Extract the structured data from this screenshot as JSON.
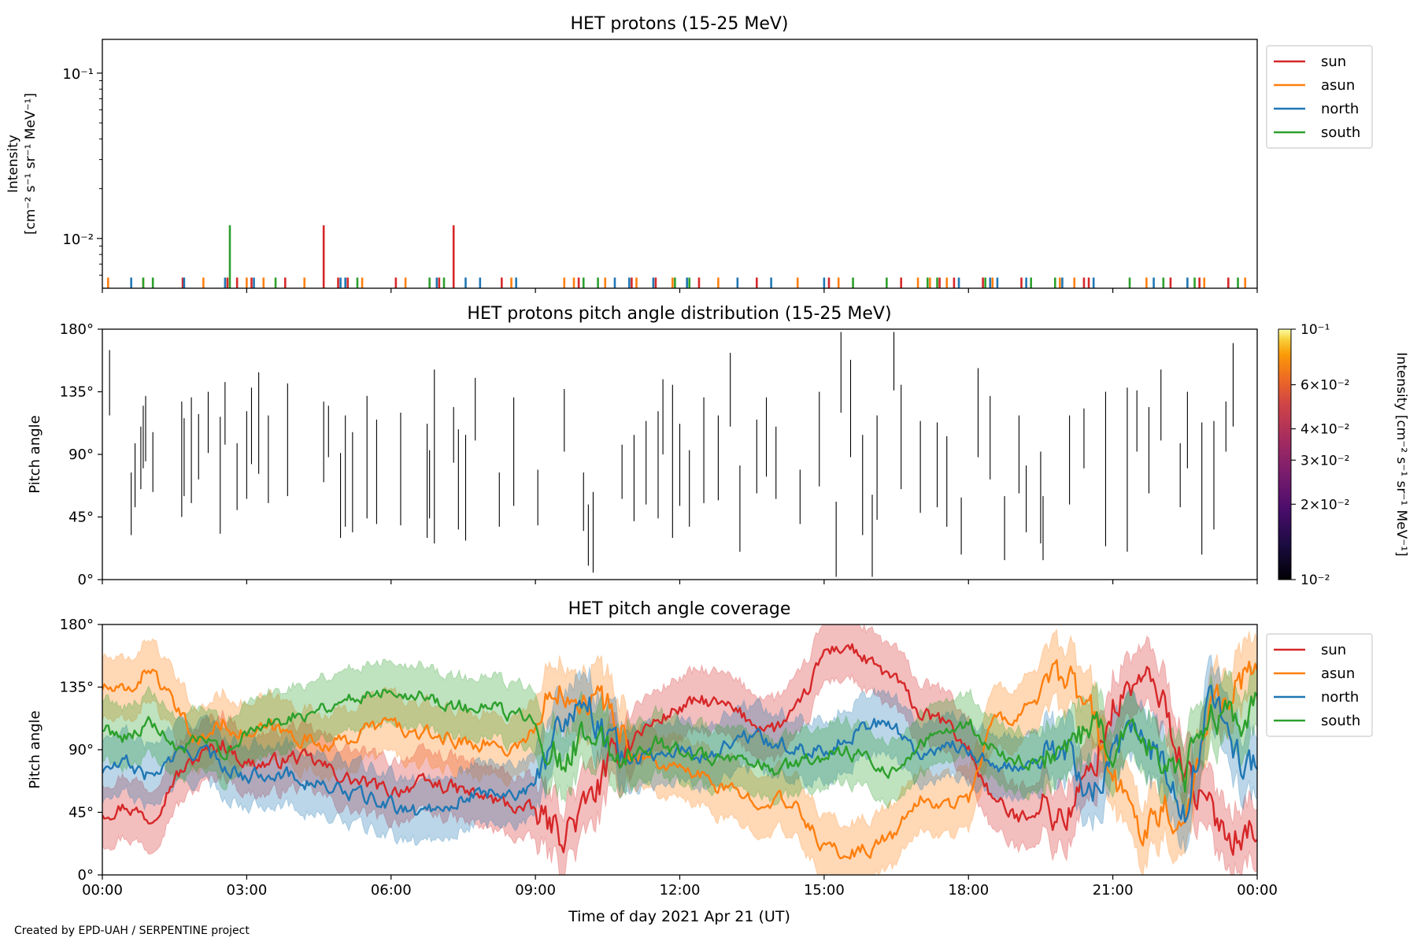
{
  "footer": "Created by EPD-UAH / SERPENTINE project",
  "chart_data": [
    {
      "type": "bar",
      "title": "HET protons (15-25 MeV)",
      "ylabel_line1": "Intensity",
      "ylabel_line2": "[cm⁻² s⁻¹ sr⁻¹ MeV⁻¹]",
      "yscale": "log",
      "ylim": [
        0.005,
        0.16
      ],
      "yticks": [
        {
          "value": 0.1,
          "label": "10⁻¹"
        },
        {
          "value": 0.01,
          "label": "10⁻²"
        }
      ],
      "xlim_hours": [
        0,
        24
      ],
      "legend_position": "outside-right",
      "series": [
        {
          "name": "sun",
          "color": "#d62728",
          "x": [
            1.67,
            2.6,
            2.8,
            3.1,
            3.8,
            4.6,
            4.9,
            5.1,
            6.1,
            7.0,
            7.3,
            8.3,
            9.9,
            11.0,
            11.5,
            12.4,
            13.6,
            15.1,
            16.6,
            17.4,
            17.7,
            18.3,
            19.1,
            20.4,
            20.5,
            22.2,
            22.8,
            23.4
          ],
          "y": [
            0.0058,
            0.0058,
            0.0058,
            0.0058,
            0.0058,
            0.012,
            0.0058,
            0.0058,
            0.0058,
            0.0058,
            0.012,
            0.0058,
            0.0058,
            0.0058,
            0.0058,
            0.0058,
            0.0058,
            0.0058,
            0.0058,
            0.0058,
            0.0058,
            0.0058,
            0.0058,
            0.0058,
            0.0058,
            0.0058,
            0.0058,
            0.0058
          ]
        },
        {
          "name": "asun",
          "color": "#ff7f0e",
          "x": [
            0.12,
            0.85,
            2.1,
            3.0,
            3.35,
            4.2,
            5.4,
            6.3,
            8.5,
            9.6,
            9.8,
            10.45,
            11.1,
            11.85,
            12.8,
            14.45,
            15.3,
            16.95,
            17.2,
            17.55,
            18.5,
            19.9,
            20.2,
            21.7,
            22.9,
            23.75
          ],
          "y": [
            0.0058,
            0.0058,
            0.0058,
            0.0058,
            0.0058,
            0.0058,
            0.0058,
            0.0058,
            0.0058,
            0.0058,
            0.0058,
            0.0058,
            0.0058,
            0.0058,
            0.0058,
            0.0058,
            0.0058,
            0.0058,
            0.0058,
            0.0058,
            0.0058,
            0.0058,
            0.0058,
            0.0058,
            0.0058,
            0.0058
          ]
        },
        {
          "name": "north",
          "color": "#1f77b4",
          "x": [
            0.6,
            1.7,
            2.55,
            3.15,
            4.95,
            5.05,
            6.95,
            7.55,
            7.85,
            8.6,
            10.65,
            10.95,
            11.45,
            12.15,
            13.2,
            13.9,
            15.0,
            17.8,
            18.45,
            18.6,
            19.2,
            19.95,
            20.6,
            21.85,
            22.55
          ],
          "y": [
            0.0058,
            0.0058,
            0.0058,
            0.0058,
            0.0058,
            0.0058,
            0.0058,
            0.0058,
            0.0058,
            0.0058,
            0.0058,
            0.0058,
            0.0058,
            0.0058,
            0.0058,
            0.0058,
            0.0058,
            0.0058,
            0.0058,
            0.0058,
            0.0058,
            0.0058,
            0.0058,
            0.0058,
            0.0058
          ]
        },
        {
          "name": "south",
          "color": "#2ca02c",
          "x": [
            0.85,
            1.05,
            2.65,
            3.6,
            5.3,
            6.8,
            7.1,
            10.0,
            10.3,
            11.9,
            12.2,
            15.6,
            16.3,
            17.15,
            17.35,
            18.35,
            19.3,
            19.8,
            21.35,
            22.05,
            22.7,
            23.6
          ],
          "y": [
            0.0058,
            0.0058,
            0.012,
            0.0058,
            0.0058,
            0.0058,
            0.0058,
            0.0058,
            0.0058,
            0.0058,
            0.0058,
            0.0058,
            0.0058,
            0.0058,
            0.0058,
            0.0058,
            0.0058,
            0.0058,
            0.0058,
            0.0058,
            0.0058,
            0.0058
          ]
        }
      ]
    },
    {
      "type": "heatmap",
      "title": "HET protons pitch angle distribution (15-25 MeV)",
      "ylabel": "Pitch angle",
      "ylim": [
        0,
        180
      ],
      "yticks": [
        "0°",
        "45°",
        "90°",
        "135°",
        "180°"
      ],
      "xlim_hours": [
        0,
        24
      ],
      "colorbar": {
        "label": "Intensity [cm⁻² s⁻¹ sr⁻¹ MeV⁻¹]",
        "scale": "log",
        "range": [
          0.01,
          0.1
        ],
        "colormap": "inferno",
        "ticks": [
          {
            "value": 0.1,
            "label": "10⁻¹"
          },
          {
            "value": 0.06,
            "label": "6×10⁻²"
          },
          {
            "value": 0.04,
            "label": "4×10⁻²"
          },
          {
            "value": 0.03,
            "label": "3×10⁻²"
          },
          {
            "value": 0.02,
            "label": "2×10⁻²"
          },
          {
            "value": 0.01,
            "label": "10⁻²"
          }
        ]
      },
      "segments": [
        [
          0.15,
          118,
          165
        ],
        [
          0.6,
          32,
          77
        ],
        [
          0.68,
          52,
          98
        ],
        [
          0.8,
          65,
          110
        ],
        [
          0.85,
          80,
          125
        ],
        [
          0.9,
          85,
          132
        ],
        [
          1.05,
          63,
          106
        ],
        [
          1.65,
          45,
          128
        ],
        [
          1.7,
          60,
          116
        ],
        [
          1.85,
          55,
          131
        ],
        [
          2.0,
          72,
          119
        ],
        [
          2.2,
          91,
          135
        ],
        [
          2.45,
          33,
          117
        ],
        [
          2.55,
          97,
          142
        ],
        [
          2.8,
          50,
          98
        ],
        [
          3.0,
          58,
          121
        ],
        [
          3.1,
          83,
          138
        ],
        [
          3.25,
          76,
          149
        ],
        [
          3.45,
          55,
          118
        ],
        [
          3.85,
          60,
          141
        ],
        [
          4.6,
          70,
          128
        ],
        [
          4.7,
          88,
          125
        ],
        [
          4.95,
          30,
          91
        ],
        [
          5.05,
          38,
          118
        ],
        [
          5.2,
          34,
          106
        ],
        [
          5.5,
          44,
          132
        ],
        [
          5.7,
          40,
          115
        ],
        [
          6.2,
          39,
          120
        ],
        [
          6.75,
          30,
          112
        ],
        [
          6.8,
          44,
          93
        ],
        [
          6.9,
          26,
          151
        ],
        [
          7.3,
          84,
          124
        ],
        [
          7.4,
          36,
          108
        ],
        [
          7.55,
          28,
          104
        ],
        [
          7.75,
          100,
          145
        ],
        [
          8.25,
          38,
          77
        ],
        [
          8.55,
          53,
          131
        ],
        [
          9.05,
          39,
          79
        ],
        [
          9.6,
          92,
          137
        ],
        [
          10.0,
          35,
          77
        ],
        [
          10.1,
          10,
          54
        ],
        [
          10.2,
          5,
          63
        ],
        [
          10.8,
          58,
          97
        ],
        [
          11.05,
          42,
          104
        ],
        [
          11.3,
          54,
          114
        ],
        [
          11.55,
          44,
          121
        ],
        [
          11.65,
          90,
          144
        ],
        [
          11.85,
          30,
          140
        ],
        [
          12.0,
          53,
          112
        ],
        [
          12.2,
          38,
          93
        ],
        [
          12.5,
          55,
          131
        ],
        [
          12.8,
          57,
          118
        ],
        [
          13.05,
          110,
          163
        ],
        [
          13.25,
          20,
          82
        ],
        [
          13.6,
          62,
          115
        ],
        [
          13.8,
          74,
          131
        ],
        [
          14.0,
          58,
          110
        ],
        [
          14.5,
          40,
          79
        ],
        [
          14.9,
          67,
          135
        ],
        [
          15.25,
          2,
          56
        ],
        [
          15.35,
          120,
          178
        ],
        [
          15.55,
          88,
          158
        ],
        [
          15.8,
          32,
          104
        ],
        [
          16.0,
          2,
          61
        ],
        [
          16.1,
          43,
          118
        ],
        [
          16.45,
          136,
          178
        ],
        [
          16.6,
          65,
          140
        ],
        [
          17.0,
          48,
          114
        ],
        [
          17.35,
          52,
          113
        ],
        [
          17.55,
          38,
          103
        ],
        [
          17.85,
          18,
          59
        ],
        [
          18.2,
          88,
          152
        ],
        [
          18.45,
          72,
          132
        ],
        [
          18.75,
          14,
          60
        ],
        [
          19.05,
          62,
          118
        ],
        [
          19.2,
          34,
          82
        ],
        [
          19.5,
          26,
          92
        ],
        [
          19.55,
          14,
          60
        ],
        [
          20.1,
          54,
          118
        ],
        [
          20.4,
          80,
          123
        ],
        [
          20.85,
          24,
          135
        ],
        [
          21.3,
          20,
          138
        ],
        [
          21.5,
          92,
          136
        ],
        [
          21.75,
          62,
          124
        ],
        [
          22.0,
          100,
          151
        ],
        [
          22.4,
          52,
          98
        ],
        [
          22.55,
          80,
          135
        ],
        [
          22.85,
          18,
          113
        ],
        [
          23.1,
          36,
          114
        ],
        [
          23.35,
          92,
          128
        ],
        [
          23.5,
          110,
          170
        ]
      ]
    },
    {
      "type": "line",
      "title": "HET pitch angle coverage",
      "ylabel": "Pitch angle",
      "xlabel": "Time of day 2021 Apr 21 (UT)",
      "ylim": [
        0,
        180
      ],
      "yticks": [
        "0°",
        "45°",
        "90°",
        "135°",
        "180°"
      ],
      "xlim_hours": [
        0,
        24
      ],
      "xticks": [
        "00:00",
        "03:00",
        "06:00",
        "09:00",
        "12:00",
        "15:00",
        "18:00",
        "21:00",
        "00:00"
      ],
      "band_halfwidth_deg": 22,
      "legend_position": "outside-right",
      "series": [
        {
          "name": "sun",
          "color": "#d62728",
          "x": [
            0,
            0.5,
            1,
            1.5,
            2,
            2.5,
            3,
            3.5,
            4,
            4.5,
            5,
            5.5,
            6,
            6.5,
            7,
            7.5,
            8,
            8.5,
            9,
            9.5,
            10,
            10.5,
            11,
            11.5,
            12,
            12.5,
            13,
            13.5,
            14,
            14.5,
            15,
            15.5,
            16,
            16.5,
            17,
            17.5,
            18,
            18.5,
            19,
            19.5,
            20,
            20.5,
            21,
            21.5,
            22,
            22.5,
            23,
            23.5,
            24
          ],
          "y": [
            45,
            50,
            40,
            70,
            85,
            95,
            80,
            80,
            85,
            80,
            70,
            65,
            60,
            65,
            65,
            60,
            55,
            50,
            45,
            30,
            45,
            75,
            100,
            110,
            120,
            125,
            120,
            110,
            105,
            120,
            160,
            165,
            150,
            140,
            115,
            110,
            90,
            55,
            40,
            50,
            40,
            70,
            120,
            140,
            130,
            75,
            45,
            30,
            35
          ]
        },
        {
          "name": "asun",
          "color": "#ff7f0e",
          "x": [
            0,
            0.5,
            1,
            1.5,
            2,
            2.5,
            3,
            3.5,
            4,
            4.5,
            5,
            5.5,
            6,
            6.5,
            7,
            7.5,
            8,
            8.5,
            9,
            9.5,
            10,
            10.5,
            11,
            11.5,
            12,
            12.5,
            13,
            13.5,
            14,
            14.5,
            15,
            15.5,
            16,
            16.5,
            17,
            17.5,
            18,
            18.5,
            19,
            19.5,
            20,
            20.5,
            21,
            21.5,
            22,
            22.5,
            23,
            23.5,
            24
          ],
          "y": [
            135,
            130,
            150,
            120,
            95,
            110,
            100,
            105,
            100,
            95,
            95,
            105,
            110,
            100,
            100,
            95,
            95,
            90,
            105,
            140,
            130,
            120,
            90,
            80,
            75,
            70,
            60,
            55,
            55,
            45,
            20,
            15,
            20,
            30,
            55,
            50,
            55,
            110,
            115,
            130,
            140,
            120,
            70,
            35,
            50,
            40,
            120,
            140,
            145
          ]
        },
        {
          "name": "north",
          "color": "#1f77b4",
          "x": [
            0,
            0.5,
            1,
            1.5,
            2,
            2.5,
            3,
            3.5,
            4,
            4.5,
            5,
            5.5,
            6,
            6.5,
            7,
            7.5,
            8,
            8.5,
            9,
            9.5,
            10,
            10.5,
            11,
            11.5,
            12,
            12.5,
            13,
            13.5,
            14,
            14.5,
            15,
            15.5,
            16,
            16.5,
            17,
            17.5,
            18,
            18.5,
            19,
            19.5,
            20,
            20.5,
            21,
            21.5,
            22,
            22.5,
            23,
            23.5,
            24
          ],
          "y": [
            75,
            80,
            70,
            85,
            90,
            80,
            70,
            75,
            70,
            65,
            60,
            55,
            50,
            45,
            50,
            55,
            60,
            60,
            60,
            110,
            130,
            100,
            85,
            85,
            90,
            85,
            95,
            100,
            95,
            90,
            90,
            100,
            110,
            105,
            85,
            95,
            90,
            80,
            75,
            80,
            90,
            60,
            80,
            110,
            80,
            40,
            130,
            90,
            75
          ]
        },
        {
          "name": "south",
          "color": "#2ca02c",
          "x": [
            0,
            0.5,
            1,
            1.5,
            2,
            2.5,
            3,
            3.5,
            4,
            4.5,
            5,
            5.5,
            6,
            6.5,
            7,
            7.5,
            8,
            8.5,
            9,
            9.5,
            10,
            10.5,
            11,
            11.5,
            12,
            12.5,
            13,
            13.5,
            14,
            14.5,
            15,
            15.5,
            16,
            16.5,
            17,
            17.5,
            18,
            18.5,
            19,
            19.5,
            20,
            20.5,
            21,
            21.5,
            22,
            22.5,
            23,
            23.5,
            24
          ],
          "y": [
            105,
            100,
            110,
            90,
            95,
            90,
            100,
            110,
            115,
            120,
            125,
            130,
            135,
            130,
            125,
            120,
            120,
            115,
            115,
            80,
            100,
            90,
            85,
            95,
            90,
            85,
            80,
            80,
            75,
            80,
            85,
            90,
            80,
            75,
            95,
            100,
            110,
            90,
            80,
            85,
            80,
            110,
            85,
            100,
            85,
            70,
            120,
            110,
            120
          ]
        }
      ]
    }
  ]
}
